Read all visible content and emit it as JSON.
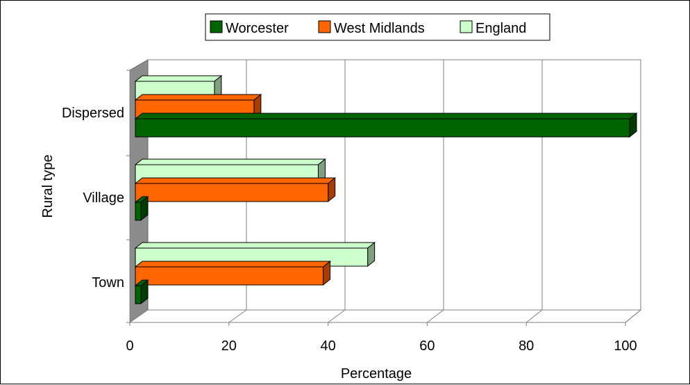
{
  "chart_data": {
    "type": "bar",
    "orientation": "horizontal",
    "three_d": true,
    "categories": [
      "Dispersed",
      "Village",
      "Town"
    ],
    "series": [
      {
        "name": "Worcester",
        "values": [
          100,
          0,
          0
        ],
        "color": "#006400",
        "side_color": "#003b00"
      },
      {
        "name": "West Midlands",
        "values": [
          24,
          39,
          38
        ],
        "color": "#ff6600",
        "side_color": "#a83d00"
      },
      {
        "name": "England",
        "values": [
          16,
          37,
          47
        ],
        "color": "#ccffcc",
        "side_color": "#7f9f7f"
      }
    ],
    "xlabel": "Percentage",
    "ylabel": "Rural type",
    "xlim": [
      0,
      100
    ],
    "xticks": [
      "0",
      "20",
      "40",
      "60",
      "80",
      "100"
    ],
    "x_tick_values": [
      0,
      20,
      40,
      60,
      80,
      100
    ],
    "grid": true,
    "legend_position": "top"
  }
}
